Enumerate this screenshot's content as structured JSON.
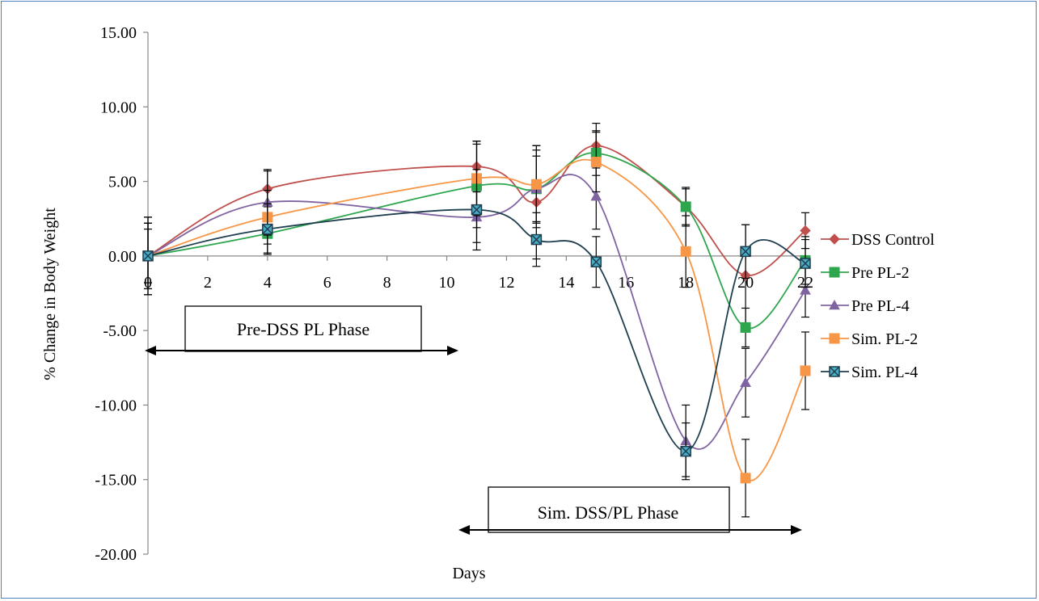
{
  "chart_data": {
    "type": "line",
    "title": "",
    "xlabel": "Days",
    "ylabel": "% Change in Body Weight",
    "x": [
      0,
      4,
      11,
      13,
      15,
      18,
      20,
      22
    ],
    "xlim": [
      0,
      22
    ],
    "xticks": [
      0,
      2,
      4,
      6,
      8,
      10,
      12,
      14,
      16,
      18,
      20,
      22
    ],
    "ylim": [
      -20,
      15
    ],
    "yticks": [
      15,
      10,
      5,
      0,
      -5,
      -10,
      -15,
      -20
    ],
    "ytick_labels": [
      "15.00",
      "10.00",
      "5.00",
      "0.00",
      "-5.00",
      "-10.00",
      "-15.00",
      "-20.00"
    ],
    "grid": false,
    "legend_position": "right",
    "series": [
      {
        "name": "DSS Control",
        "color": "#c0504d",
        "marker": "diamond",
        "values": [
          0,
          4.5,
          6.0,
          3.6,
          7.4,
          3.3,
          -1.3,
          1.7
        ],
        "errors": [
          2.6,
          1.2,
          1.7,
          3.8,
          1.5,
          1.2,
          3.4,
          1.2
        ]
      },
      {
        "name": "Pre PL-2",
        "color": "#2ea64e",
        "marker": "square",
        "values": [
          0,
          1.5,
          4.7,
          4.5,
          6.9,
          3.3,
          -4.8,
          -0.3
        ],
        "errors": [
          2.2,
          1.3,
          2.8,
          2.6,
          1.5,
          1.3,
          1.3,
          1.6
        ]
      },
      {
        "name": "Pre PL-4",
        "color": "#8064a2",
        "marker": "triangle",
        "values": [
          0,
          3.6,
          2.6,
          4.5,
          4.0,
          -12.4,
          -8.5,
          -2.3
        ],
        "errors": [
          1.8,
          2.2,
          1.7,
          2.2,
          2.2,
          2.4,
          2.3,
          1.8
        ]
      },
      {
        "name": "Sim. PL-2",
        "color": "#f79646",
        "marker": "square",
        "values": [
          0,
          2.6,
          5.2,
          4.8,
          6.3,
          0.3,
          -14.9,
          -7.7
        ],
        "errors": [
          2.2,
          1.8,
          2.5,
          2.6,
          2.0,
          2.4,
          2.6,
          2.6
        ]
      },
      {
        "name": "Sim. PL-4",
        "color": "#1f3f4f",
        "marker": "square-x",
        "values": [
          0,
          1.8,
          3.1,
          1.1,
          -0.4,
          -13.1,
          0.3,
          -0.5
        ],
        "errors": [
          2.6,
          1.7,
          2.7,
          1.8,
          1.7,
          1.9,
          1.8,
          1.6
        ]
      }
    ],
    "annotations": [
      {
        "text": "Pre-DSS PL Phase",
        "x_from": 0,
        "x_to": 10.5
      },
      {
        "text": "Sim. DSS/PL Phase",
        "x_from": 10.5,
        "x_to": 22
      }
    ]
  }
}
